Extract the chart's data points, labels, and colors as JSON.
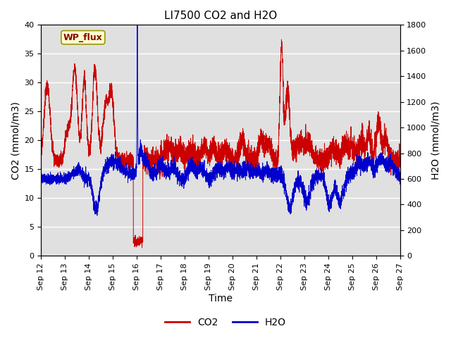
{
  "title": "LI7500 CO2 and H2O",
  "xlabel": "Time",
  "ylabel_left": "CO2 (mmol/m3)",
  "ylabel_right": "H2O (mmol/m3)",
  "annotation_text": "WP_flux",
  "xlim_days": [
    12,
    27
  ],
  "ylim_left": [
    0,
    40
  ],
  "ylim_right": [
    0,
    1800
  ],
  "co2_color": "#cc0000",
  "h2o_color": "#0000cc",
  "background_color": "#e0e0e0",
  "xtick_labels": [
    "Sep 12",
    "Sep 13",
    "Sep 14",
    "Sep 15",
    "Sep 16",
    "Sep 17",
    "Sep 18",
    "Sep 19",
    "Sep 20",
    "Sep 21",
    "Sep 22",
    "Sep 23",
    "Sep 24",
    "Sep 25",
    "Sep 26",
    "Sep 27"
  ],
  "xtick_positions": [
    12,
    13,
    14,
    15,
    16,
    17,
    18,
    19,
    20,
    21,
    22,
    23,
    24,
    25,
    26,
    27
  ],
  "yticks_left": [
    0,
    5,
    10,
    15,
    20,
    25,
    30,
    35,
    40
  ],
  "yticks_right": [
    0,
    200,
    400,
    600,
    800,
    1000,
    1200,
    1400,
    1600,
    1800
  ],
  "legend_co2": "CO2",
  "legend_h2o": "H2O",
  "title_fontsize": 11,
  "axis_fontsize": 10,
  "tick_fontsize": 8,
  "linewidth": 0.7
}
